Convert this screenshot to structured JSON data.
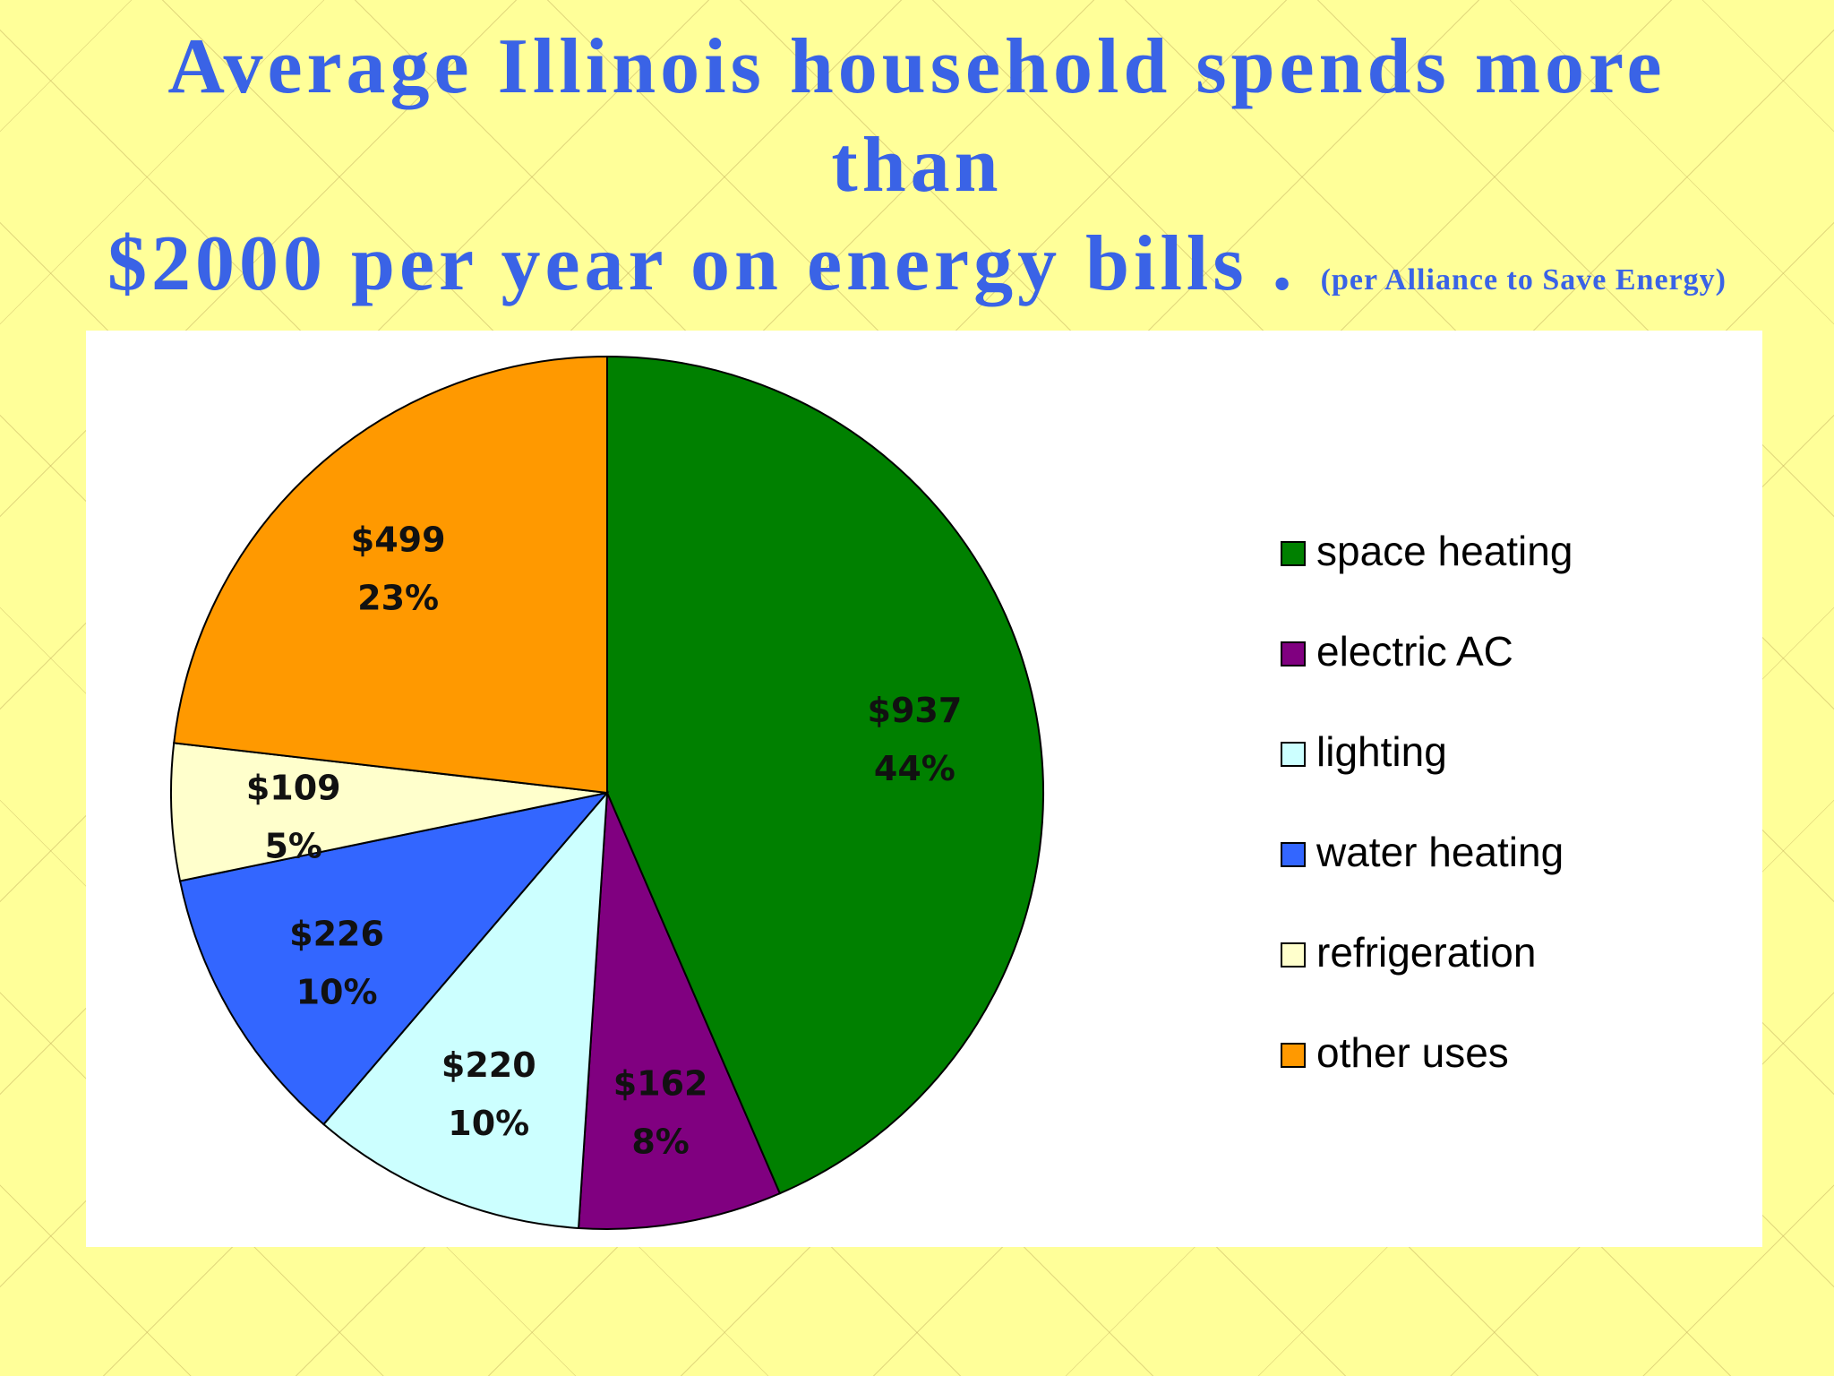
{
  "title": {
    "line1": "Average Illinois household spends more",
    "line2": "than",
    "line3": "$2000 per year on energy bills .",
    "note": "(per Alliance to Save Energy)"
  },
  "chart_data": {
    "type": "pie",
    "title": "Average Illinois household spends more than $2000 per year on energy bills.",
    "categories": [
      "space heating",
      "electric AC",
      "lighting",
      "water heating",
      "refrigeration",
      "other uses"
    ],
    "values": [
      937,
      162,
      220,
      226,
      109,
      499
    ],
    "percent_labels": [
      "44%",
      "8%",
      "10%",
      "10%",
      "5%",
      "23%"
    ],
    "value_labels": [
      "$937",
      "$162",
      "$220",
      "$226",
      "$109",
      "$499"
    ],
    "colors": [
      "#008000",
      "#800080",
      "#ccffff",
      "#3366ff",
      "#ffffcc",
      "#ff9900"
    ],
    "legend_position": "right",
    "start": "top, clockwise"
  }
}
